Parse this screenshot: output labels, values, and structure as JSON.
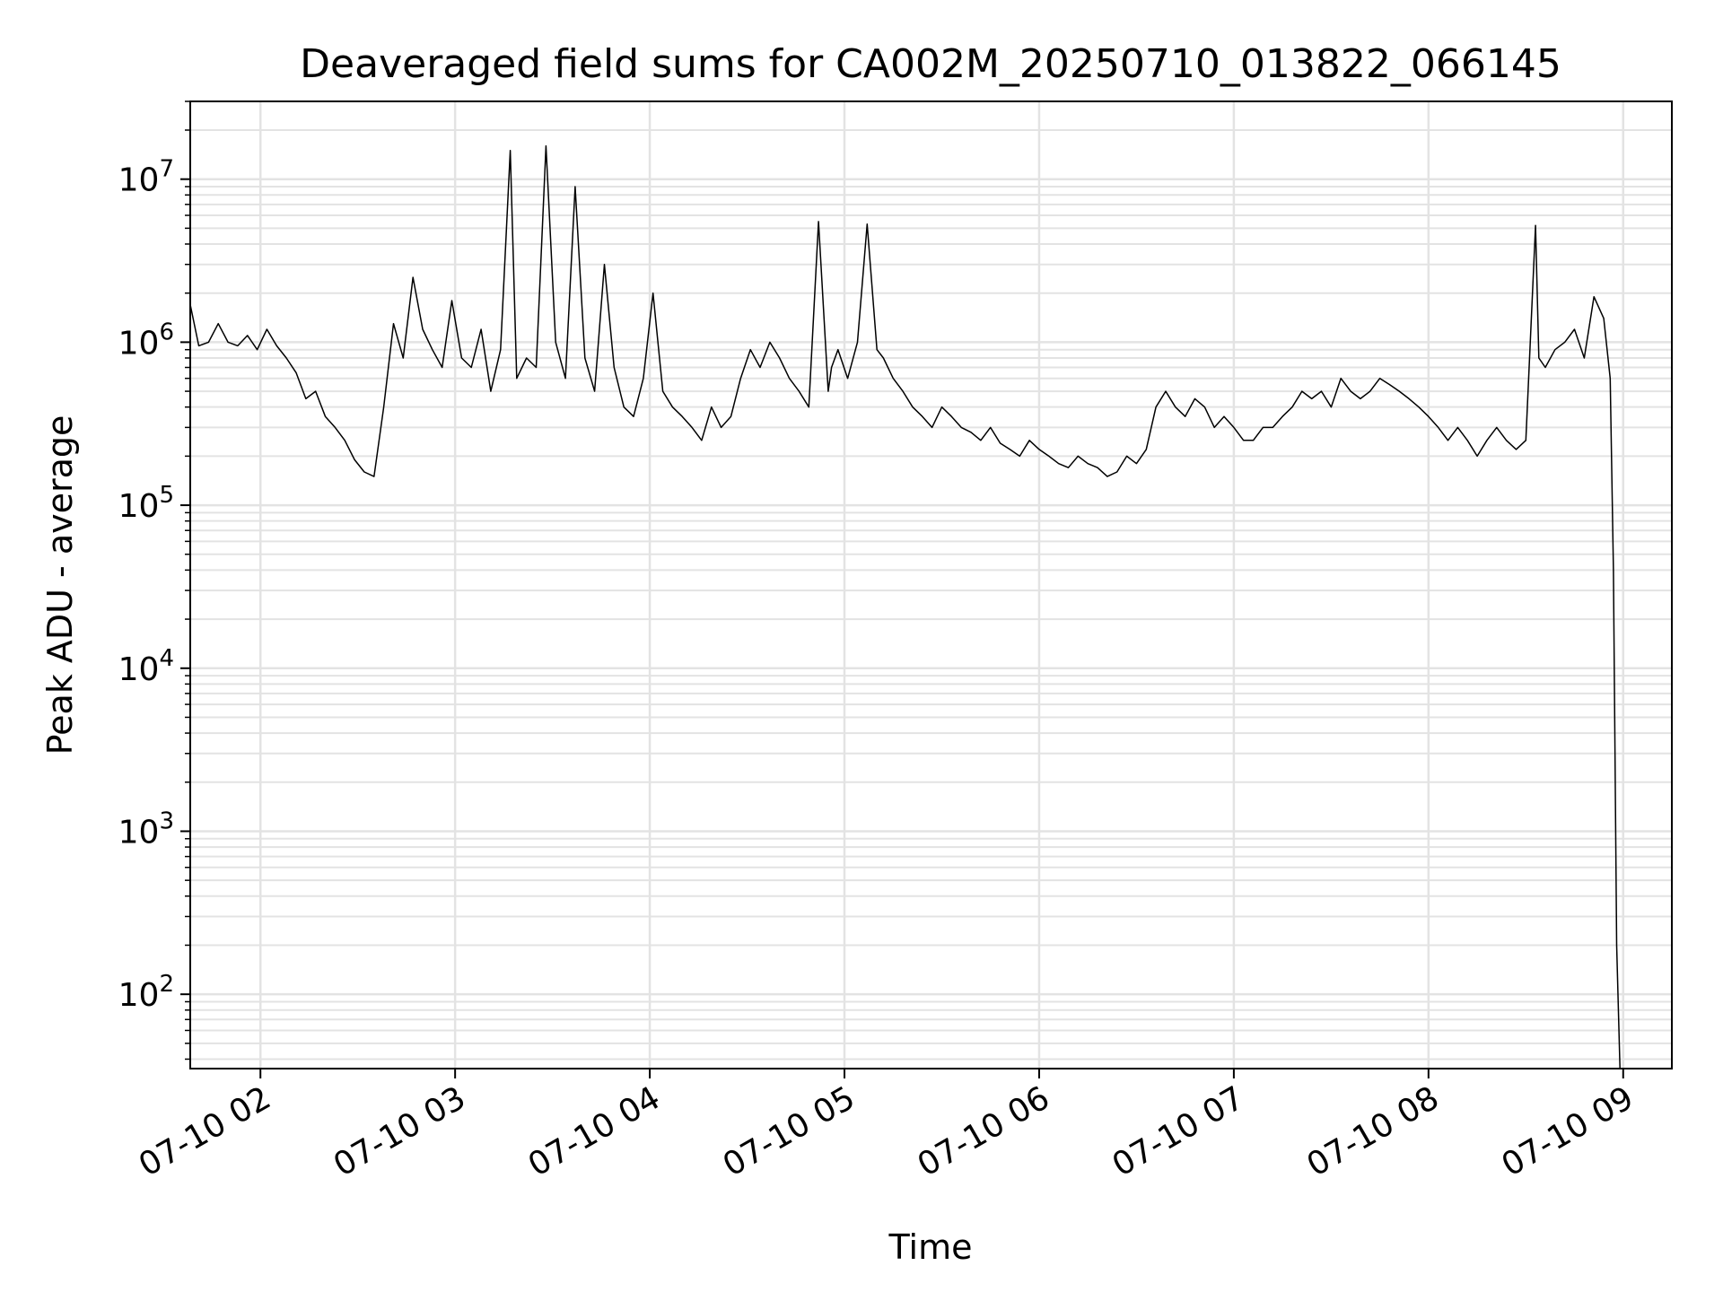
{
  "chart_data": {
    "type": "line",
    "title": "Deaveraged field sums for CA002M_20250710_013822_066145",
    "xlabel": "Time",
    "ylabel": "Peak ADU - average",
    "yscale": "log",
    "grid": true,
    "x_range": [
      "2025-07-10T01:38:22",
      "2025-07-10T09:15:00"
    ],
    "ylim": [
      35,
      30000000
    ],
    "xticks": [
      "07-10 02",
      "07-10 03",
      "07-10 04",
      "07-10 05",
      "07-10 06",
      "07-10 07",
      "07-10 08",
      "07-10 09"
    ],
    "yticks": [
      {
        "base": "10",
        "exp": "2",
        "value": 100
      },
      {
        "base": "10",
        "exp": "3",
        "value": 1000
      },
      {
        "base": "10",
        "exp": "4",
        "value": 10000
      },
      {
        "base": "10",
        "exp": "5",
        "value": 100000
      },
      {
        "base": "10",
        "exp": "6",
        "value": 1000000
      },
      {
        "base": "10",
        "exp": "7",
        "value": 10000000
      }
    ],
    "line_color": "#000000",
    "grid_color": "#e3e3e3",
    "series": [
      {
        "x": [
          "2025-07-10T01:38:22",
          "2025-07-10T01:41:00",
          "2025-07-10T01:44:00",
          "2025-07-10T01:47:00",
          "2025-07-10T01:50:00",
          "2025-07-10T01:53:00",
          "2025-07-10T01:56:00",
          "2025-07-10T01:59:00",
          "2025-07-10T02:02:00",
          "2025-07-10T02:05:00",
          "2025-07-10T02:08:00",
          "2025-07-10T02:11:00",
          "2025-07-10T02:14:00",
          "2025-07-10T02:17:00",
          "2025-07-10T02:20:00",
          "2025-07-10T02:23:00",
          "2025-07-10T02:26:00",
          "2025-07-10T02:29:00",
          "2025-07-10T02:32:00",
          "2025-07-10T02:35:00",
          "2025-07-10T02:38:00",
          "2025-07-10T02:41:00",
          "2025-07-10T02:44:00",
          "2025-07-10T02:47:00",
          "2025-07-10T02:50:00",
          "2025-07-10T02:53:00",
          "2025-07-10T02:56:00",
          "2025-07-10T02:59:00",
          "2025-07-10T03:02:00",
          "2025-07-10T03:05:00",
          "2025-07-10T03:08:00",
          "2025-07-10T03:11:00",
          "2025-07-10T03:14:00",
          "2025-07-10T03:17:00",
          "2025-07-10T03:19:00",
          "2025-07-10T03:22:00",
          "2025-07-10T03:25:00",
          "2025-07-10T03:28:00",
          "2025-07-10T03:31:00",
          "2025-07-10T03:34:00",
          "2025-07-10T03:37:00",
          "2025-07-10T03:40:00",
          "2025-07-10T03:43:00",
          "2025-07-10T03:46:00",
          "2025-07-10T03:49:00",
          "2025-07-10T03:52:00",
          "2025-07-10T03:55:00",
          "2025-07-10T03:58:00",
          "2025-07-10T04:01:00",
          "2025-07-10T04:04:00",
          "2025-07-10T04:07:00",
          "2025-07-10T04:10:00",
          "2025-07-10T04:13:00",
          "2025-07-10T04:16:00",
          "2025-07-10T04:19:00",
          "2025-07-10T04:22:00",
          "2025-07-10T04:25:00",
          "2025-07-10T04:28:00",
          "2025-07-10T04:31:00",
          "2025-07-10T04:34:00",
          "2025-07-10T04:37:00",
          "2025-07-10T04:40:00",
          "2025-07-10T04:43:00",
          "2025-07-10T04:46:00",
          "2025-07-10T04:49:00",
          "2025-07-10T04:52:00",
          "2025-07-10T04:55:00",
          "2025-07-10T04:56:00",
          "2025-07-10T04:58:00",
          "2025-07-10T05:01:00",
          "2025-07-10T05:04:00",
          "2025-07-10T05:07:00",
          "2025-07-10T05:10:00",
          "2025-07-10T05:12:00",
          "2025-07-10T05:15:00",
          "2025-07-10T05:18:00",
          "2025-07-10T05:21:00",
          "2025-07-10T05:24:00",
          "2025-07-10T05:27:00",
          "2025-07-10T05:30:00",
          "2025-07-10T05:33:00",
          "2025-07-10T05:36:00",
          "2025-07-10T05:39:00",
          "2025-07-10T05:42:00",
          "2025-07-10T05:45:00",
          "2025-07-10T05:48:00",
          "2025-07-10T05:51:00",
          "2025-07-10T05:54:00",
          "2025-07-10T05:57:00",
          "2025-07-10T06:00:00",
          "2025-07-10T06:03:00",
          "2025-07-10T06:06:00",
          "2025-07-10T06:09:00",
          "2025-07-10T06:12:00",
          "2025-07-10T06:15:00",
          "2025-07-10T06:18:00",
          "2025-07-10T06:21:00",
          "2025-07-10T06:24:00",
          "2025-07-10T06:27:00",
          "2025-07-10T06:30:00",
          "2025-07-10T06:33:00",
          "2025-07-10T06:36:00",
          "2025-07-10T06:39:00",
          "2025-07-10T06:42:00",
          "2025-07-10T06:45:00",
          "2025-07-10T06:48:00",
          "2025-07-10T06:51:00",
          "2025-07-10T06:54:00",
          "2025-07-10T06:57:00",
          "2025-07-10T07:00:00",
          "2025-07-10T07:03:00",
          "2025-07-10T07:06:00",
          "2025-07-10T07:09:00",
          "2025-07-10T07:12:00",
          "2025-07-10T07:15:00",
          "2025-07-10T07:18:00",
          "2025-07-10T07:21:00",
          "2025-07-10T07:24:00",
          "2025-07-10T07:27:00",
          "2025-07-10T07:30:00",
          "2025-07-10T07:33:00",
          "2025-07-10T07:36:00",
          "2025-07-10T07:39:00",
          "2025-07-10T07:42:00",
          "2025-07-10T07:45:00",
          "2025-07-10T07:48:00",
          "2025-07-10T07:51:00",
          "2025-07-10T07:54:00",
          "2025-07-10T07:57:00",
          "2025-07-10T08:00:00",
          "2025-07-10T08:03:00",
          "2025-07-10T08:06:00",
          "2025-07-10T08:09:00",
          "2025-07-10T08:12:00",
          "2025-07-10T08:15:00",
          "2025-07-10T08:18:00",
          "2025-07-10T08:21:00",
          "2025-07-10T08:24:00",
          "2025-07-10T08:27:00",
          "2025-07-10T08:30:00",
          "2025-07-10T08:33:00",
          "2025-07-10T08:34:00",
          "2025-07-10T08:36:00",
          "2025-07-10T08:39:00",
          "2025-07-10T08:42:00",
          "2025-07-10T08:45:00",
          "2025-07-10T08:48:00",
          "2025-07-10T08:51:00",
          "2025-07-10T08:54:00",
          "2025-07-10T08:56:00",
          "2025-07-10T08:57:00",
          "2025-07-10T08:58:00",
          "2025-07-10T08:59:00"
        ],
        "y": [
          1700000,
          950000,
          1000000,
          1300000,
          1000000,
          950000,
          1100000,
          900000,
          1200000,
          950000,
          800000,
          650000,
          450000,
          500000,
          350000,
          300000,
          250000,
          190000,
          160000,
          150000,
          400000,
          1300000,
          800000,
          2500000,
          1200000,
          900000,
          700000,
          1800000,
          800000,
          700000,
          1200000,
          500000,
          900000,
          15000000,
          600000,
          800000,
          700000,
          16000000,
          1000000,
          600000,
          9000000,
          800000,
          500000,
          3000000,
          700000,
          400000,
          350000,
          600000,
          2000000,
          500000,
          400000,
          350000,
          300000,
          250000,
          400000,
          300000,
          350000,
          600000,
          900000,
          700000,
          1000000,
          800000,
          600000,
          500000,
          400000,
          5500000,
          500000,
          700000,
          900000,
          600000,
          1000000,
          5300000,
          900000,
          800000,
          600000,
          500000,
          400000,
          350000,
          300000,
          400000,
          350000,
          300000,
          280000,
          250000,
          300000,
          240000,
          220000,
          200000,
          250000,
          220000,
          200000,
          180000,
          170000,
          200000,
          180000,
          170000,
          150000,
          160000,
          200000,
          180000,
          220000,
          400000,
          500000,
          400000,
          350000,
          450000,
          400000,
          300000,
          350000,
          300000,
          250000,
          250000,
          300000,
          300000,
          350000,
          400000,
          500000,
          450000,
          500000,
          400000,
          600000,
          500000,
          450000,
          500000,
          600000,
          550000,
          500000,
          450000,
          400000,
          350000,
          300000,
          250000,
          300000,
          250000,
          200000,
          250000,
          300000,
          250000,
          220000,
          250000,
          5200000,
          800000,
          700000,
          900000,
          1000000,
          1200000,
          800000,
          1900000,
          1400000,
          600000,
          40000,
          200,
          35
        ]
      }
    ]
  }
}
